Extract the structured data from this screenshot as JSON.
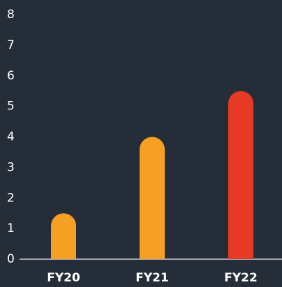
{
  "chart_data": {
    "type": "bar",
    "categories": [
      "FY20",
      "FY21",
      "FY22"
    ],
    "values": [
      1.5,
      4.0,
      5.5
    ],
    "bar_colors": [
      "#f5a024",
      "#f5a024",
      "#e73a25"
    ],
    "title": "",
    "xlabel": "",
    "ylabel": "",
    "ylim": [
      0,
      8
    ],
    "yticks": [
      "0",
      "1",
      "2",
      "3",
      "4",
      "5",
      "6",
      "7",
      "8"
    ],
    "grid": false,
    "legend": "none"
  },
  "colors": {
    "background": "#252e38",
    "axis": "#c8ccd0",
    "text": "#ffffff"
  }
}
